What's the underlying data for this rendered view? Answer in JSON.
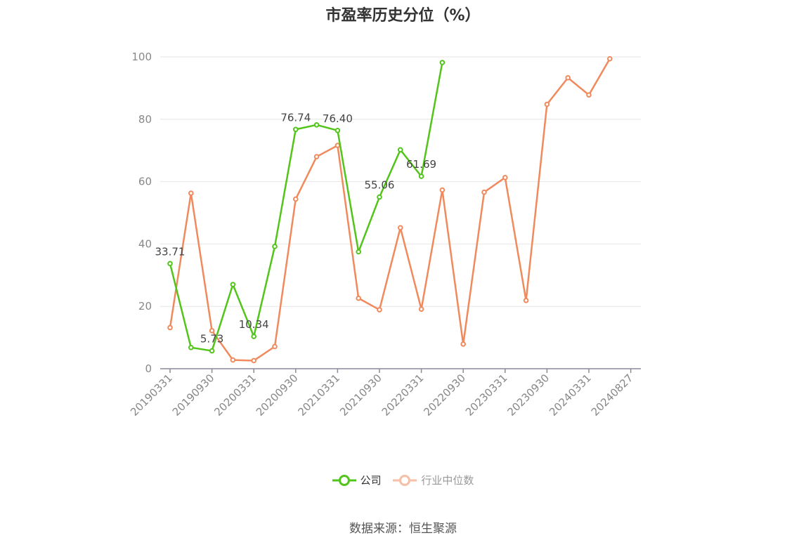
{
  "chart_data": {
    "type": "line",
    "title": "市盈率历史分位（%）",
    "xlabel": "",
    "ylabel": "",
    "ylim": [
      0,
      100
    ],
    "yticks": [
      0,
      20,
      40,
      60,
      80,
      100
    ],
    "x": [
      "20190331",
      "20190630",
      "20190930",
      "20191231",
      "20200331",
      "20200630",
      "20200930",
      "20201231",
      "20210331",
      "20210630",
      "20210930",
      "20211231",
      "20220331",
      "20220630",
      "20220930",
      "20221231",
      "20230331",
      "20230630",
      "20230930",
      "20231231",
      "20240331",
      "20240630",
      "20240827"
    ],
    "xtick_labels": [
      "20190331",
      "20190930",
      "20200331",
      "20200930",
      "20210331",
      "20210930",
      "20220331",
      "20220930",
      "20230331",
      "20230930",
      "20240331",
      "20240827"
    ],
    "series": [
      {
        "name": "公司",
        "color": "#52c41a",
        "values": [
          33.71,
          6.8,
          5.73,
          27.0,
          10.34,
          39.2,
          76.74,
          78.2,
          76.4,
          37.5,
          55.06,
          70.2,
          61.69,
          98.2,
          null,
          null,
          null,
          null,
          null,
          null,
          null,
          null,
          null
        ]
      },
      {
        "name": "行业中位数",
        "color": "#f08a5d",
        "values": [
          13.2,
          56.3,
          12.2,
          2.8,
          2.6,
          7.1,
          54.4,
          68.0,
          71.6,
          22.6,
          18.9,
          45.2,
          19.1,
          57.3,
          7.9,
          56.6,
          61.3,
          21.9,
          84.8,
          93.3,
          87.8,
          99.4,
          null
        ]
      }
    ],
    "data_labels": [
      {
        "series": 0,
        "index": 0,
        "text": "33.71"
      },
      {
        "series": 0,
        "index": 2,
        "text": "5.73"
      },
      {
        "series": 0,
        "index": 4,
        "text": "10.34"
      },
      {
        "series": 0,
        "index": 6,
        "text": "76.74"
      },
      {
        "series": 0,
        "index": 8,
        "text": "76.40"
      },
      {
        "series": 0,
        "index": 10,
        "text": "55.06"
      },
      {
        "series": 0,
        "index": 12,
        "text": "61.69"
      }
    ],
    "grid": true,
    "legend_position": "bottom"
  },
  "source_text": "数据来源：恒生聚源"
}
